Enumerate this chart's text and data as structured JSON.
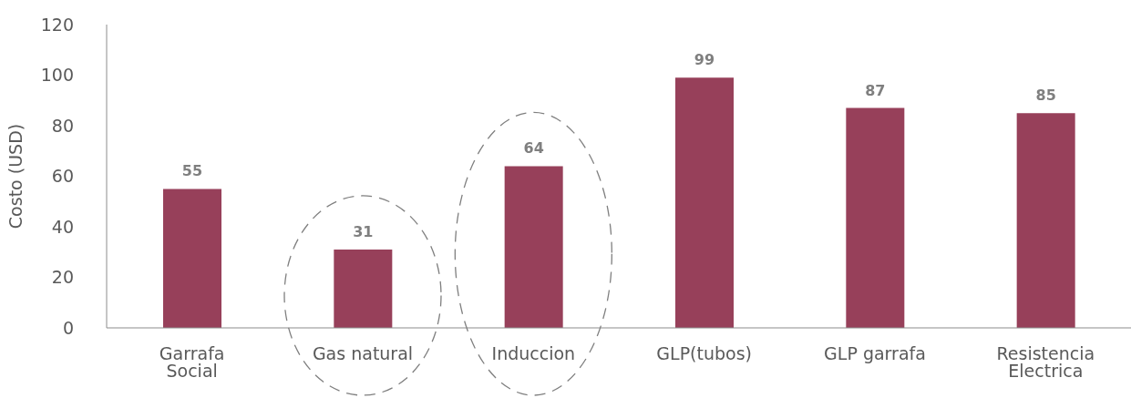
{
  "chart_data": {
    "type": "bar",
    "ylabel": "Costo (USD)",
    "categories": [
      "Garrafa Social",
      "Gas natural",
      "Induccion",
      "GLP(tubos)",
      "GLP garrafa",
      "Resistencia Electrica"
    ],
    "values": [
      55,
      31,
      64,
      99,
      87,
      85
    ],
    "color": "#97405a",
    "ylim": [
      0,
      120
    ],
    "yticks": [
      0,
      20,
      40,
      60,
      80,
      100,
      120
    ],
    "grid": false,
    "data_labels": true
  }
}
